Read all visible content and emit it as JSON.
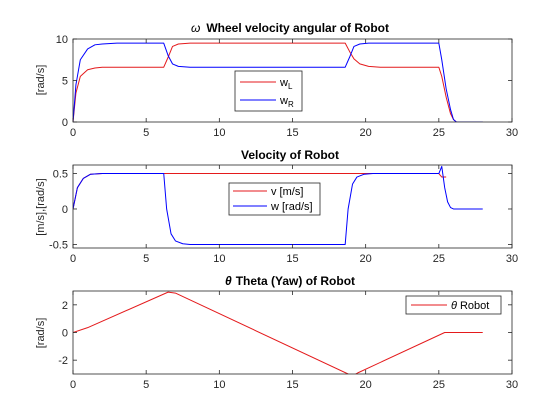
{
  "colors": {
    "red": "#e41a1c",
    "blue": "#0000ff",
    "axis": "#262626"
  },
  "chart_data": [
    {
      "type": "line",
      "title_symbol": "ω",
      "title": "Wheel velocity angular of Robot",
      "xlabel": "",
      "ylabel": "[rad/s]",
      "xlim": [
        0,
        30
      ],
      "ylim": [
        0,
        10
      ],
      "xticks": [
        0,
        5,
        10,
        15,
        20,
        25,
        30
      ],
      "yticks": [
        0,
        5,
        10
      ],
      "legend_position": "center",
      "series": [
        {
          "name": "w_L",
          "label_main": "w",
          "label_sub": "L",
          "color": "red",
          "x": [
            0,
            0.2,
            0.5,
            1,
            1.5,
            2,
            3,
            6.2,
            6.5,
            6.8,
            7.2,
            8,
            18.6,
            18.9,
            19.2,
            19.6,
            20.2,
            21,
            25,
            25.2,
            25.5,
            25.8,
            26,
            26.2,
            28
          ],
          "y": [
            0,
            3.5,
            5.5,
            6.3,
            6.5,
            6.6,
            6.6,
            6.6,
            7.8,
            9.1,
            9.4,
            9.5,
            9.5,
            8.5,
            7.6,
            7.0,
            6.7,
            6.6,
            6.6,
            5.5,
            3.0,
            1.0,
            0.3,
            0,
            0
          ]
        },
        {
          "name": "w_R",
          "label_main": "w",
          "label_sub": "R",
          "color": "blue",
          "x": [
            0,
            0.2,
            0.5,
            1,
            1.5,
            2,
            3,
            6.2,
            6.5,
            6.8,
            7.2,
            8,
            18.6,
            18.9,
            19.2,
            19.6,
            20.2,
            21,
            25,
            25.2,
            25.5,
            25.8,
            26,
            26.2,
            28
          ],
          "y": [
            0,
            4.5,
            7.5,
            8.8,
            9.3,
            9.4,
            9.5,
            9.5,
            8.0,
            7.0,
            6.7,
            6.6,
            6.6,
            7.8,
            9.1,
            9.4,
            9.5,
            9.5,
            9.5,
            7.5,
            4.0,
            1.5,
            0.3,
            0,
            0
          ]
        }
      ]
    },
    {
      "type": "line",
      "title": "Velocity of Robot",
      "xlabel": "",
      "ylabel": "[m/s],[rad/s]",
      "xlim": [
        0,
        30
      ],
      "ylim": [
        -0.55,
        0.62
      ],
      "xticks": [
        0,
        5,
        10,
        15,
        20,
        25,
        30
      ],
      "yticks": [
        -0.5,
        0,
        0.5
      ],
      "legend_position": "center",
      "series": [
        {
          "name": "v [m/s]",
          "color": "red",
          "x": [
            0,
            0.3,
            0.7,
            1.2,
            2,
            3,
            25,
            25.2,
            25.5
          ],
          "y": [
            0,
            0.3,
            0.43,
            0.49,
            0.5,
            0.5,
            0.5,
            0.45,
            0.45
          ]
        },
        {
          "name": "w [rad/s]",
          "color": "blue",
          "x": [
            0,
            0.3,
            0.7,
            1.2,
            2,
            6.2,
            6.4,
            6.7,
            7.0,
            7.5,
            8,
            18.6,
            18.8,
            19.1,
            19.4,
            19.9,
            20.5,
            25,
            25.2,
            25.4,
            25.6,
            25.8,
            26,
            28
          ],
          "y": [
            0,
            0.3,
            0.43,
            0.49,
            0.5,
            0.5,
            0.0,
            -0.35,
            -0.45,
            -0.49,
            -0.5,
            -0.5,
            0.0,
            0.35,
            0.45,
            0.49,
            0.5,
            0.5,
            0.6,
            0.3,
            0.1,
            0.02,
            0,
            0
          ]
        }
      ]
    },
    {
      "type": "line",
      "title_symbol": "θ",
      "title": "Theta (Yaw) of Robot",
      "xlabel": "",
      "ylabel": "[rad/s]",
      "xlim": [
        0,
        30
      ],
      "ylim": [
        -3,
        3
      ],
      "xticks": [
        0,
        5,
        10,
        15,
        20,
        25,
        30
      ],
      "yticks": [
        -2,
        0,
        2
      ],
      "legend_position": "top-right",
      "series": [
        {
          "name": "θ Robot",
          "label_symbol": "θ",
          "label_text": "Robot",
          "color": "red",
          "x": [
            0,
            1,
            6.5,
            7,
            18.8,
            19,
            19.5,
            25.4,
            26,
            28
          ],
          "y": [
            0,
            0.35,
            2.92,
            2.85,
            -3.0,
            -3.2,
            -2.9,
            0,
            0,
            0
          ]
        }
      ]
    }
  ]
}
